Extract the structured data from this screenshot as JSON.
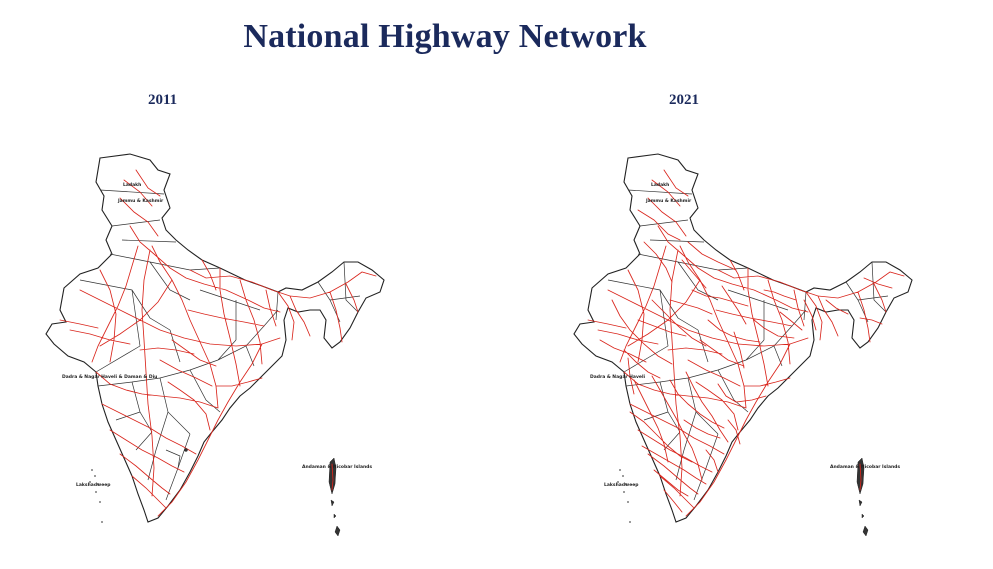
{
  "title": "National Highway Network",
  "maps": [
    {
      "year": "2011",
      "labels": {
        "ladakh": "Ladakh",
        "jk": "Jammu & Kashmir",
        "dnh": "Dadra & Nagar Haveli & Daman & Diu",
        "lakshadweep": "Lakshadweep",
        "andaman": "Andaman & Nicobar Islands"
      }
    },
    {
      "year": "2021",
      "labels": {
        "ladakh": "Ladakh",
        "jk": "Jammu & Kashmir",
        "dnh": "Dadra & Nagar Haveli",
        "lakshadweep": "Lakshadweep",
        "andaman": "Andaman & Nicobar Islands"
      }
    }
  ],
  "colors": {
    "title": "#1b2a5c",
    "road": "#d9251c",
    "border": "#222222"
  }
}
